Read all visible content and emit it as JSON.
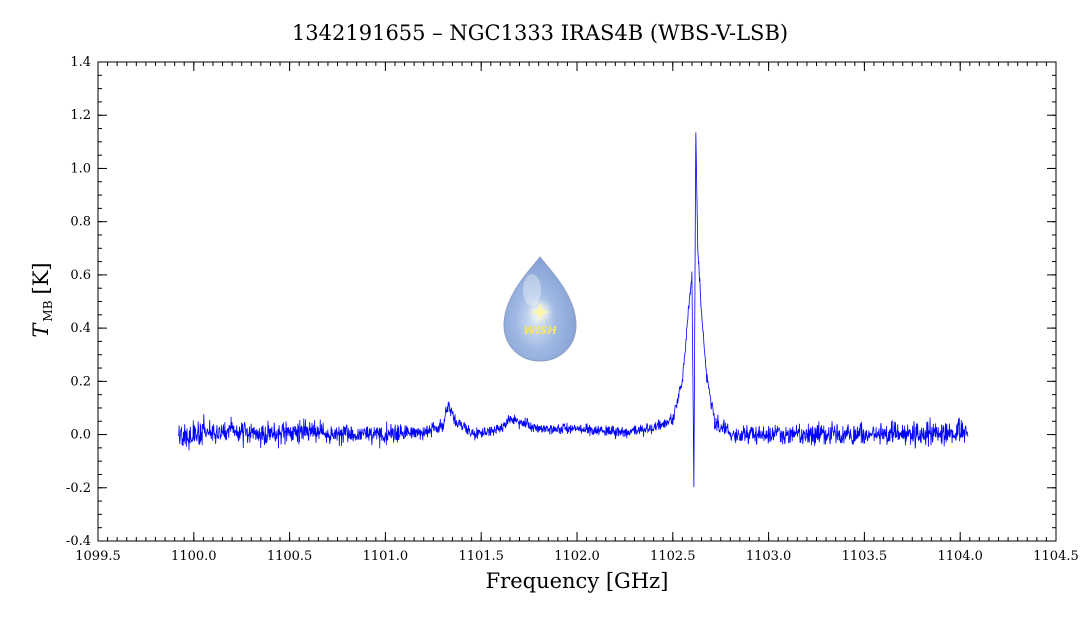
{
  "chart_data": {
    "type": "line",
    "title": "1342191655 – NGC1333 IRAS4B (WBS-V-LSB)",
    "xlabel": "Frequency [GHz]",
    "ylabel_main": "T",
    "ylabel_sub": "MB",
    "ylabel_unit": "[K]",
    "xlim": [
      1099.5,
      1104.5
    ],
    "ylim": [
      -0.4,
      1.4
    ],
    "x_ticks": [
      1099.5,
      1100.0,
      1100.5,
      1101.0,
      1101.5,
      1102.0,
      1102.5,
      1103.0,
      1103.5,
      1104.0,
      1104.5
    ],
    "x_tick_labels": [
      "1099.5",
      "1100.0",
      "1100.5",
      "1101.0",
      "1101.5",
      "1102.0",
      "1102.5",
      "1103.0",
      "1103.5",
      "1104.0",
      "1104.5"
    ],
    "y_ticks": [
      -0.4,
      -0.2,
      0.0,
      0.2,
      0.4,
      0.6,
      0.8,
      1.0,
      1.2,
      1.4
    ],
    "y_tick_labels": [
      "-0.4",
      "-0.2",
      "0.0",
      "0.2",
      "0.4",
      "0.6",
      "0.8",
      "1.0",
      "1.2",
      "1.4"
    ],
    "grid": false,
    "line_color": "#0000ff",
    "series": [
      {
        "x": [
          1099.92,
          1100.0,
          1100.2,
          1100.4,
          1100.6,
          1100.8,
          1101.0,
          1101.2,
          1101.3,
          1101.33,
          1101.36,
          1101.45,
          1101.6,
          1101.65,
          1101.8,
          1102.0,
          1102.2,
          1102.4,
          1102.5,
          1102.55,
          1102.58,
          1102.6,
          1102.61,
          1102.62,
          1102.63,
          1102.65,
          1102.68,
          1102.72,
          1102.8,
          1103.0,
          1103.2,
          1103.4,
          1103.6,
          1103.8,
          1104.0,
          1104.04
        ],
        "y": [
          0.0,
          0.0,
          0.01,
          0.0,
          0.01,
          0.0,
          0.0,
          0.01,
          0.03,
          0.12,
          0.06,
          0.0,
          0.02,
          0.06,
          0.02,
          0.02,
          0.01,
          0.02,
          0.06,
          0.2,
          0.45,
          0.6,
          -0.2,
          1.15,
          0.7,
          0.45,
          0.2,
          0.05,
          0.0,
          0.0,
          0.0,
          0.0,
          0.0,
          0.0,
          0.01,
          0.0
        ],
        "noise_rms": [
          0.05,
          0.05,
          0.04,
          0.04,
          0.04,
          0.035,
          0.035,
          0.03,
          0.03,
          0.03,
          0.025,
          0.02,
          0.02,
          0.02,
          0.02,
          0.02,
          0.02,
          0.02,
          0.02,
          0.02,
          0.02,
          0.02,
          0.0,
          0.0,
          0.02,
          0.02,
          0.02,
          0.03,
          0.035,
          0.035,
          0.035,
          0.04,
          0.04,
          0.04,
          0.045,
          0.045
        ]
      }
    ]
  },
  "logo": {
    "text": "WISH"
  }
}
